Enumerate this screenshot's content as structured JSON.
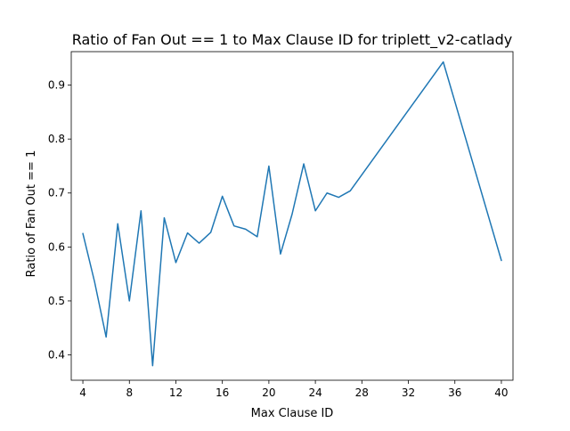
{
  "chart_data": {
    "type": "line",
    "title": "Ratio of Fan Out == 1 to Max Clause ID for triplett_v2-catlady",
    "xlabel": "Max Clause ID",
    "ylabel": "Ratio of Fan Out == 1",
    "xlim": [
      3,
      41
    ],
    "ylim": [
      0.353,
      0.962
    ],
    "xticks": [
      4,
      8,
      12,
      16,
      20,
      24,
      28,
      32,
      36,
      40
    ],
    "yticks": [
      0.4,
      0.5,
      0.6,
      0.7,
      0.8,
      0.9
    ],
    "ytick_labels": [
      "0.4",
      "0.5",
      "0.6",
      "0.7",
      "0.8",
      "0.9"
    ],
    "grid": false,
    "series": [
      {
        "color": "#1f77b4",
        "x": [
          4,
          5,
          6,
          7,
          8,
          9,
          10,
          11,
          12,
          13,
          14,
          15,
          16,
          17,
          18,
          19,
          20,
          21,
          22,
          23,
          24,
          25,
          26,
          27,
          35,
          40
        ],
        "y": [
          0.625,
          0.536,
          0.433,
          0.643,
          0.5,
          0.667,
          0.38,
          0.654,
          0.571,
          0.626,
          0.607,
          0.627,
          0.694,
          0.639,
          0.633,
          0.619,
          0.75,
          0.587,
          0.661,
          0.754,
          0.667,
          0.7,
          0.692,
          0.704,
          0.943,
          0.575
        ]
      }
    ]
  }
}
